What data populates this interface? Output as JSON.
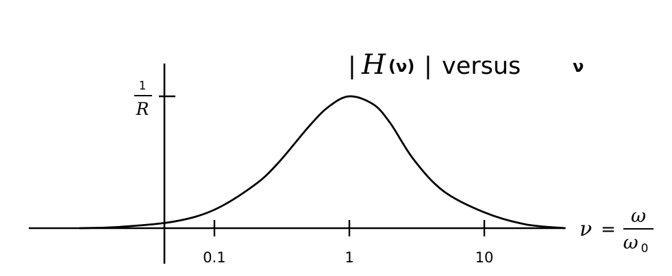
{
  "chart_data": {
    "type": "line",
    "title": {
      "bar_left": "|",
      "func": "H",
      "arg": "(ν)",
      "bar_right": "|",
      "versus": "versus",
      "var": "ν"
    },
    "x_scale": "log",
    "xlim": [
      0.01,
      40
    ],
    "ylim": [
      0,
      1.1
    ],
    "x_ticks": [
      {
        "value": 0.1,
        "label": "0.1"
      },
      {
        "value": 1,
        "label": "1"
      },
      {
        "value": 10,
        "label": "10"
      }
    ],
    "y_tick": {
      "value": 1,
      "numerator": "1",
      "denominator": "R"
    },
    "xlabel": {
      "var": "ν",
      "equals": "=",
      "numerator": "ω",
      "denominator": "ω",
      "subscript": "0"
    },
    "series": [
      {
        "x": [
          0.01,
          0.02,
          0.05,
          0.1,
          0.2,
          0.3,
          0.5,
          0.7,
          1,
          1.5,
          2,
          3,
          5,
          10,
          20,
          40
        ],
        "values": [
          0.0,
          0.01,
          0.05,
          0.14,
          0.33,
          0.5,
          0.77,
          0.92,
          1.0,
          0.94,
          0.8,
          0.52,
          0.28,
          0.12,
          0.03,
          0.0
        ]
      }
    ]
  }
}
